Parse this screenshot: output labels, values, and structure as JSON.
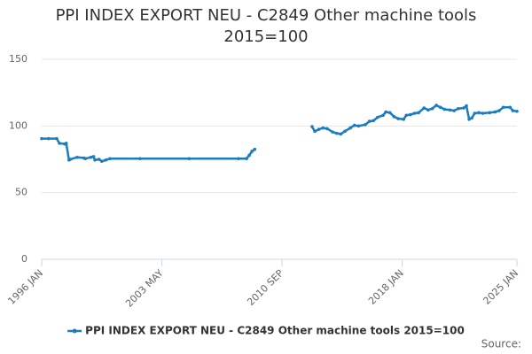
{
  "chart_data": {
    "type": "line",
    "title": "PPI INDEX EXPORT NEU - C2849 Other machine tools 2015=100",
    "source": "Source:",
    "x": [
      "1996-01",
      "1996-06",
      "1996-12",
      "1997-02",
      "1997-06",
      "1997-07",
      "1997-09",
      "1997-10",
      "1998-03",
      "1998-08",
      "1998-09",
      "1999-01",
      "1999-03",
      "1999-04",
      "1999-07",
      "1999-09",
      "1999-12",
      "2000-03",
      "2002-01",
      "2005-01",
      "2008-01",
      "2008-07",
      "2008-09",
      "2008-11",
      "2009-01",
      "2010-09",
      "2012-07",
      "2012-09",
      "2012-12",
      "2013-03",
      "2013-06",
      "2013-10",
      "2014-01",
      "2014-04",
      "2014-07",
      "2014-11",
      "2015-02",
      "2015-05",
      "2015-10",
      "2016-01",
      "2016-04",
      "2016-07",
      "2016-11",
      "2017-01",
      "2017-04",
      "2017-07",
      "2017-10",
      "2018-02",
      "2018-04",
      "2018-07",
      "2018-10",
      "2019-01",
      "2019-05",
      "2019-08",
      "2019-11",
      "2020-02",
      "2020-05",
      "2020-08",
      "2020-12",
      "2021-03",
      "2021-06",
      "2021-10",
      "2021-12",
      "2022-02",
      "2022-04",
      "2022-06",
      "2022-09",
      "2022-12",
      "2023-05",
      "2023-09",
      "2023-12",
      "2024-03",
      "2024-08",
      "2024-10",
      "2025-01"
    ],
    "series": [
      {
        "name": "PPI INDEX EXPORT NEU - C2849 Other machine tools 2015=100",
        "color": "#1a7dc0",
        "values": [
          90.5,
          90.5,
          90.5,
          87,
          86.5,
          87,
          74.5,
          75,
          76.5,
          76,
          75.5,
          76.5,
          77,
          74.5,
          75,
          73.5,
          74.5,
          75.5,
          75.5,
          75.5,
          75.5,
          75.5,
          78,
          81,
          82.5,
          null,
          99.5,
          96,
          97.5,
          98.5,
          98,
          95.5,
          94.5,
          94,
          96,
          98.5,
          100.5,
          100,
          101,
          103.5,
          104,
          106.5,
          108,
          110.5,
          110,
          107,
          105.5,
          105,
          108,
          108.5,
          109.5,
          110,
          113.5,
          112,
          113,
          115.5,
          114,
          112.5,
          112,
          111.5,
          113,
          113.5,
          115,
          105,
          106,
          109.5,
          110,
          109.5,
          110,
          110.5,
          111.5,
          114,
          114,
          111.5,
          111
        ]
      }
    ],
    "xlim": [
      "1996-01",
      "2025-01"
    ],
    "xticks": [
      {
        "value": "1996-01",
        "label": "1996 JAN"
      },
      {
        "value": "2003-05",
        "label": "2003 MAY"
      },
      {
        "value": "2010-09",
        "label": "2010 SEP"
      },
      {
        "value": "2018-01",
        "label": "2018 JAN"
      },
      {
        "value": "2025-01",
        "label": "2025 JAN"
      }
    ],
    "ylim": [
      0,
      150
    ],
    "yticks": [
      0,
      50,
      100,
      150
    ],
    "grid": true
  }
}
